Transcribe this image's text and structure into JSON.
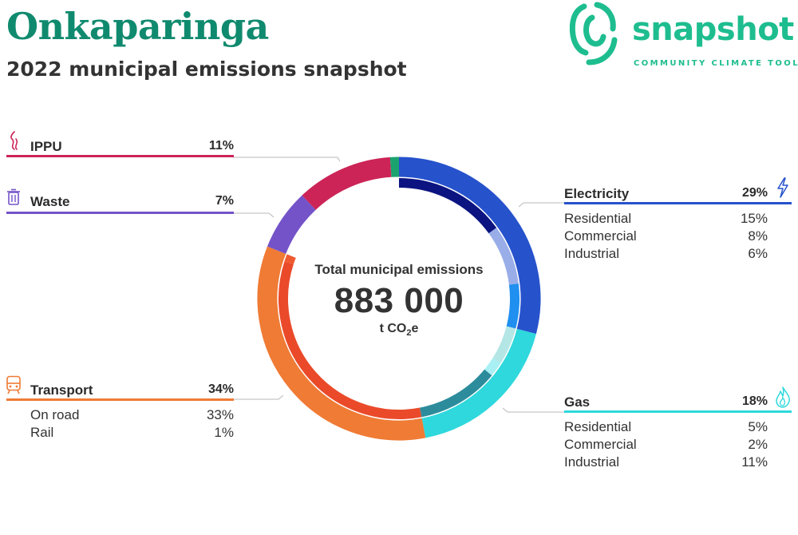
{
  "header": {
    "title": "Onkaparinga",
    "subtitle": "2022 municipal emissions snapshot"
  },
  "logo": {
    "wordmark": "snapshot",
    "tagline": "COMMUNITY CLIMATE TOOL",
    "color": "#1ebd8f"
  },
  "center": {
    "label": "Total municipal emissions",
    "value": "883 000",
    "unit_prefix": "t CO",
    "unit_sub": "2",
    "unit_suffix": "e"
  },
  "categories": {
    "ippu": {
      "label": "IPPU",
      "pct": "11%",
      "icon": "smoke-icon",
      "color": "#cc2457"
    },
    "waste": {
      "label": "Waste",
      "pct": "7%",
      "icon": "trash-bin-icon",
      "color": "#7453c9"
    },
    "transport": {
      "label": "Transport",
      "pct": "34%",
      "icon": "train-icon",
      "color": "#ef7b35",
      "subs": [
        {
          "label": "On road",
          "pct": "33%"
        },
        {
          "label": "Rail",
          "pct": "1%"
        }
      ]
    },
    "electricity": {
      "label": "Electricity",
      "pct": "29%",
      "icon": "lightning-bolt-icon",
      "color": "#2652cc",
      "subs": [
        {
          "label": "Residential",
          "pct": "15%"
        },
        {
          "label": "Commercial",
          "pct": "8%"
        },
        {
          "label": "Industrial",
          "pct": "6%"
        }
      ]
    },
    "gas": {
      "label": "Gas",
      "pct": "18%",
      "icon": "flame-icon",
      "color": "#2ed8dc",
      "subs": [
        {
          "label": "Residential",
          "pct": "5%"
        },
        {
          "label": "Commercial",
          "pct": "2%"
        },
        {
          "label": "Industrial",
          "pct": "11%"
        }
      ]
    }
  },
  "chart_data": {
    "type": "pie",
    "series": [
      {
        "name": "Electricity",
        "value": 29,
        "color": "#2652cc",
        "subs": [
          {
            "name": "Residential",
            "value": 15,
            "color": "#0b1480"
          },
          {
            "name": "Commercial",
            "value": 8,
            "color": "#99aee8"
          },
          {
            "name": "Industrial",
            "value": 6,
            "color": "#1f8ff0"
          }
        ]
      },
      {
        "name": "Gas",
        "value": 18,
        "color": "#2ed8dc",
        "subs": [
          {
            "name": "Residential",
            "value": 5,
            "color": "#b5e6e6"
          },
          {
            "name": "Commercial",
            "value": 2,
            "color": "#a8f0f4"
          },
          {
            "name": "Industrial",
            "value": 11,
            "color": "#2d8c9c"
          }
        ]
      },
      {
        "name": "Transport",
        "value": 34,
        "color": "#ef7b35",
        "subs": [
          {
            "name": "On road",
            "value": 33,
            "color": "#ea4a2a"
          },
          {
            "name": "Rail",
            "value": 1,
            "color": "#ee5b31"
          }
        ]
      },
      {
        "name": "Waste",
        "value": 7,
        "color": "#7453c9",
        "subs": []
      },
      {
        "name": "IPPU",
        "value": 11,
        "color": "#cc2457",
        "subs": []
      },
      {
        "value": 1,
        "color": "#1ba36f",
        "subs": []
      }
    ]
  }
}
